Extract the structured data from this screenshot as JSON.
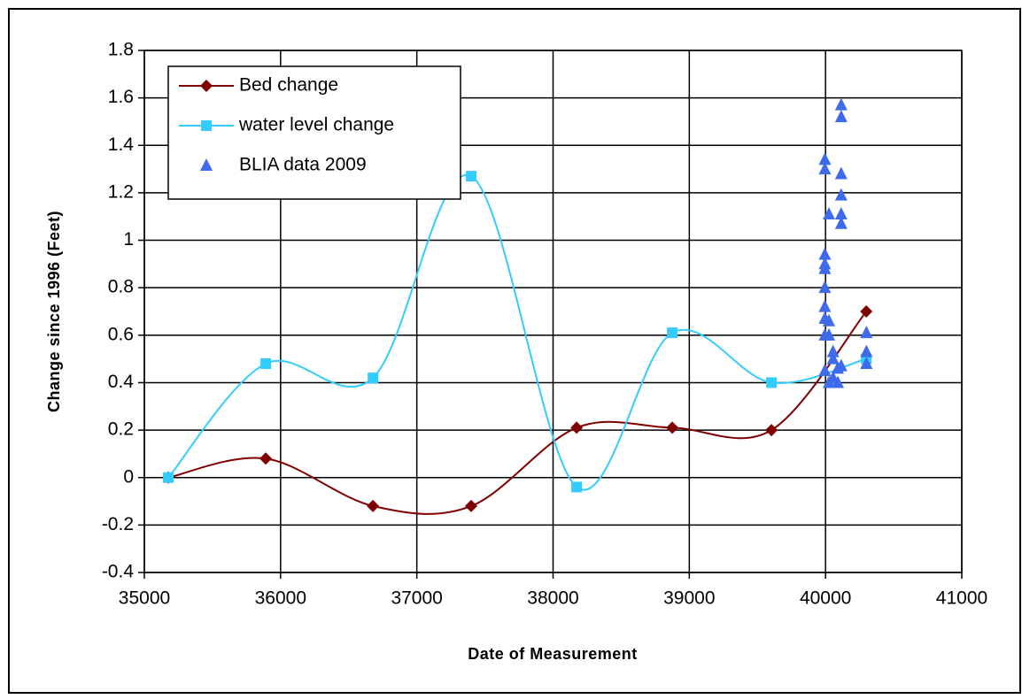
{
  "chart_data": {
    "type": "scatter",
    "x_label": "Date of Measurement",
    "y_label": "Change since 1996 (Feet)",
    "xlim": [
      35000,
      41000
    ],
    "xticks": [
      35000,
      36000,
      37000,
      38000,
      39000,
      40000,
      41000
    ],
    "ylim": [
      -0.4,
      1.8
    ],
    "yticks": [
      -0.4,
      -0.2,
      0,
      0.2,
      0.4,
      0.6,
      0.8,
      1,
      1.2,
      1.4,
      1.6,
      1.8
    ],
    "grid": true,
    "legend": "upper left",
    "series": [
      {
        "name": "Bed change",
        "color": "#800000",
        "marker": "diamond",
        "line": true,
        "x": [
          35176,
          35891,
          36678,
          37399,
          38173,
          38875,
          39603,
          40299
        ],
        "values": [
          0,
          0.08,
          -0.12,
          -0.12,
          0.21,
          0.21,
          0.2,
          0.7
        ]
      },
      {
        "name": "water level change",
        "color": "#33CCFF",
        "marker": "square",
        "line": true,
        "x": [
          35176,
          35891,
          36678,
          37399,
          38173,
          38875,
          39603,
          40299
        ],
        "values": [
          0,
          0.48,
          0.42,
          1.27,
          -0.04,
          0.61,
          0.4,
          0.5
        ]
      },
      {
        "name": "BLIA data 2009",
        "color": "#3F6BEA",
        "marker": "triangle",
        "line": false,
        "x": [
          39995,
          39995,
          39995,
          39995,
          39995,
          39995,
          39995,
          39995,
          39995,
          39995,
          40025,
          40025,
          40025,
          40025,
          40055,
          40055,
          40055,
          40090,
          40090,
          40115,
          40115,
          40115,
          40115,
          40115,
          40115,
          40115,
          40300,
          40300,
          40300
        ],
        "values": [
          1.34,
          1.3,
          0.94,
          0.9,
          0.88,
          0.8,
          0.72,
          0.67,
          0.6,
          0.45,
          1.11,
          0.66,
          0.6,
          0.4,
          0.53,
          0.5,
          0.42,
          0.46,
          0.4,
          1.57,
          1.52,
          1.28,
          1.19,
          1.11,
          1.07,
          0.47,
          0.61,
          0.53,
          0.48
        ]
      }
    ]
  }
}
